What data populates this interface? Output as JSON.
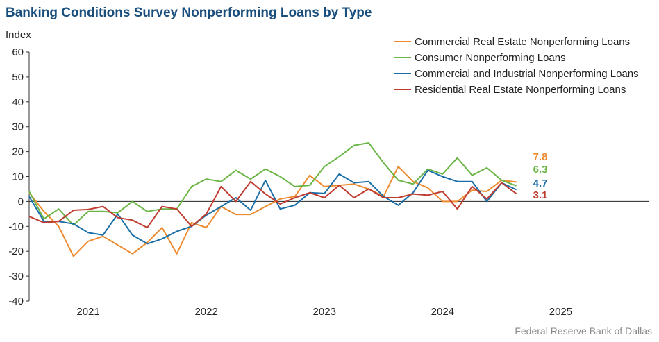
{
  "title": "Banking Conditions Survey Nonperforming Loans by Type",
  "credit": "Federal Reserve Bank of Dallas",
  "chart_data": {
    "type": "line",
    "title": "Banking Conditions Survey Nonperforming Loans by Type",
    "xlabel": "",
    "ylabel": "Index",
    "ylim": [
      -40,
      60
    ],
    "yticks": [
      -40,
      -30,
      -20,
      -10,
      0,
      10,
      20,
      30,
      40,
      50,
      60
    ],
    "xlim": [
      2020.5,
      2025.75
    ],
    "xticks": [
      {
        "x": 2021,
        "label": "2021"
      },
      {
        "x": 2022,
        "label": "2022"
      },
      {
        "x": 2023,
        "label": "2023"
      },
      {
        "x": 2024,
        "label": "2024"
      },
      {
        "x": 2025,
        "label": "2025"
      }
    ],
    "grid": false,
    "legend": "top-right",
    "x": [
      2020.5,
      2020.625,
      2020.75,
      2020.875,
      2021.0,
      2021.125,
      2021.25,
      2021.375,
      2021.5,
      2021.625,
      2021.75,
      2021.875,
      2022.0,
      2022.125,
      2022.25,
      2022.375,
      2022.5,
      2022.625,
      2022.75,
      2022.875,
      2023.0,
      2023.125,
      2023.25,
      2023.375,
      2023.5,
      2023.625,
      2023.75,
      2023.875,
      2024.0,
      2024.125,
      2024.25,
      2024.375,
      2024.5,
      2024.625,
      2024.75
    ],
    "series": [
      {
        "name": "Commercial Real Estate Nonperforming Loans",
        "color": "#ee8a2e",
        "end_label": "7.8",
        "values": [
          3.5,
          -4,
          -10,
          -22,
          -16,
          -14,
          -17.5,
          -21,
          -16.5,
          -10.5,
          -21,
          -8.5,
          -10.5,
          -2,
          -5.2,
          -5.2,
          -2,
          1,
          2,
          10.5,
          6,
          6.5,
          7,
          5,
          2,
          14,
          8,
          5.5,
          0,
          0,
          4.5,
          4,
          8.5,
          7.8,
          null
        ]
      },
      {
        "name": "Consumer Nonperforming Loans",
        "color": "#6ab545",
        "end_label": "6.3",
        "values": [
          4,
          -7,
          -3,
          -9.5,
          -4,
          -4,
          -4.5,
          0,
          -4,
          -3,
          -3,
          6,
          9,
          8,
          12.5,
          9,
          13,
          10,
          6,
          6.5,
          14,
          18,
          22.5,
          23.5,
          15.5,
          8.5,
          7,
          13,
          11,
          17.5,
          10.5,
          13.5,
          8.5,
          6.3,
          null
        ]
      },
      {
        "name": "Commercial and Industrial Nonperforming Loans",
        "color": "#1a6ea8",
        "end_label": "4.7",
        "values": [
          2,
          -8,
          -8,
          -9,
          -12.5,
          -13.5,
          -5,
          -13.5,
          -17,
          -15,
          -12,
          -10,
          -5.5,
          -2,
          1.5,
          -3.5,
          8.5,
          -3,
          -1.5,
          3.5,
          3.2,
          11,
          7.5,
          8,
          2,
          -1.5,
          3.5,
          12.5,
          10,
          8,
          8,
          0,
          7.5,
          4.7,
          null
        ]
      },
      {
        "name": "Residential Real Estate Nonperforming Loans",
        "color": "#bf3b2e",
        "end_label": "3.1",
        "values": [
          -6,
          -8.5,
          -8,
          -3.5,
          -3.2,
          -2,
          -6.5,
          -7.5,
          -10.5,
          -2,
          -3,
          -10,
          -5,
          6,
          0,
          8,
          3,
          -1,
          1.5,
          3.5,
          1.5,
          6.5,
          1.5,
          5,
          1.5,
          1.5,
          3,
          2.5,
          4,
          -3,
          6,
          1,
          7.5,
          3.1,
          null
        ]
      }
    ]
  }
}
